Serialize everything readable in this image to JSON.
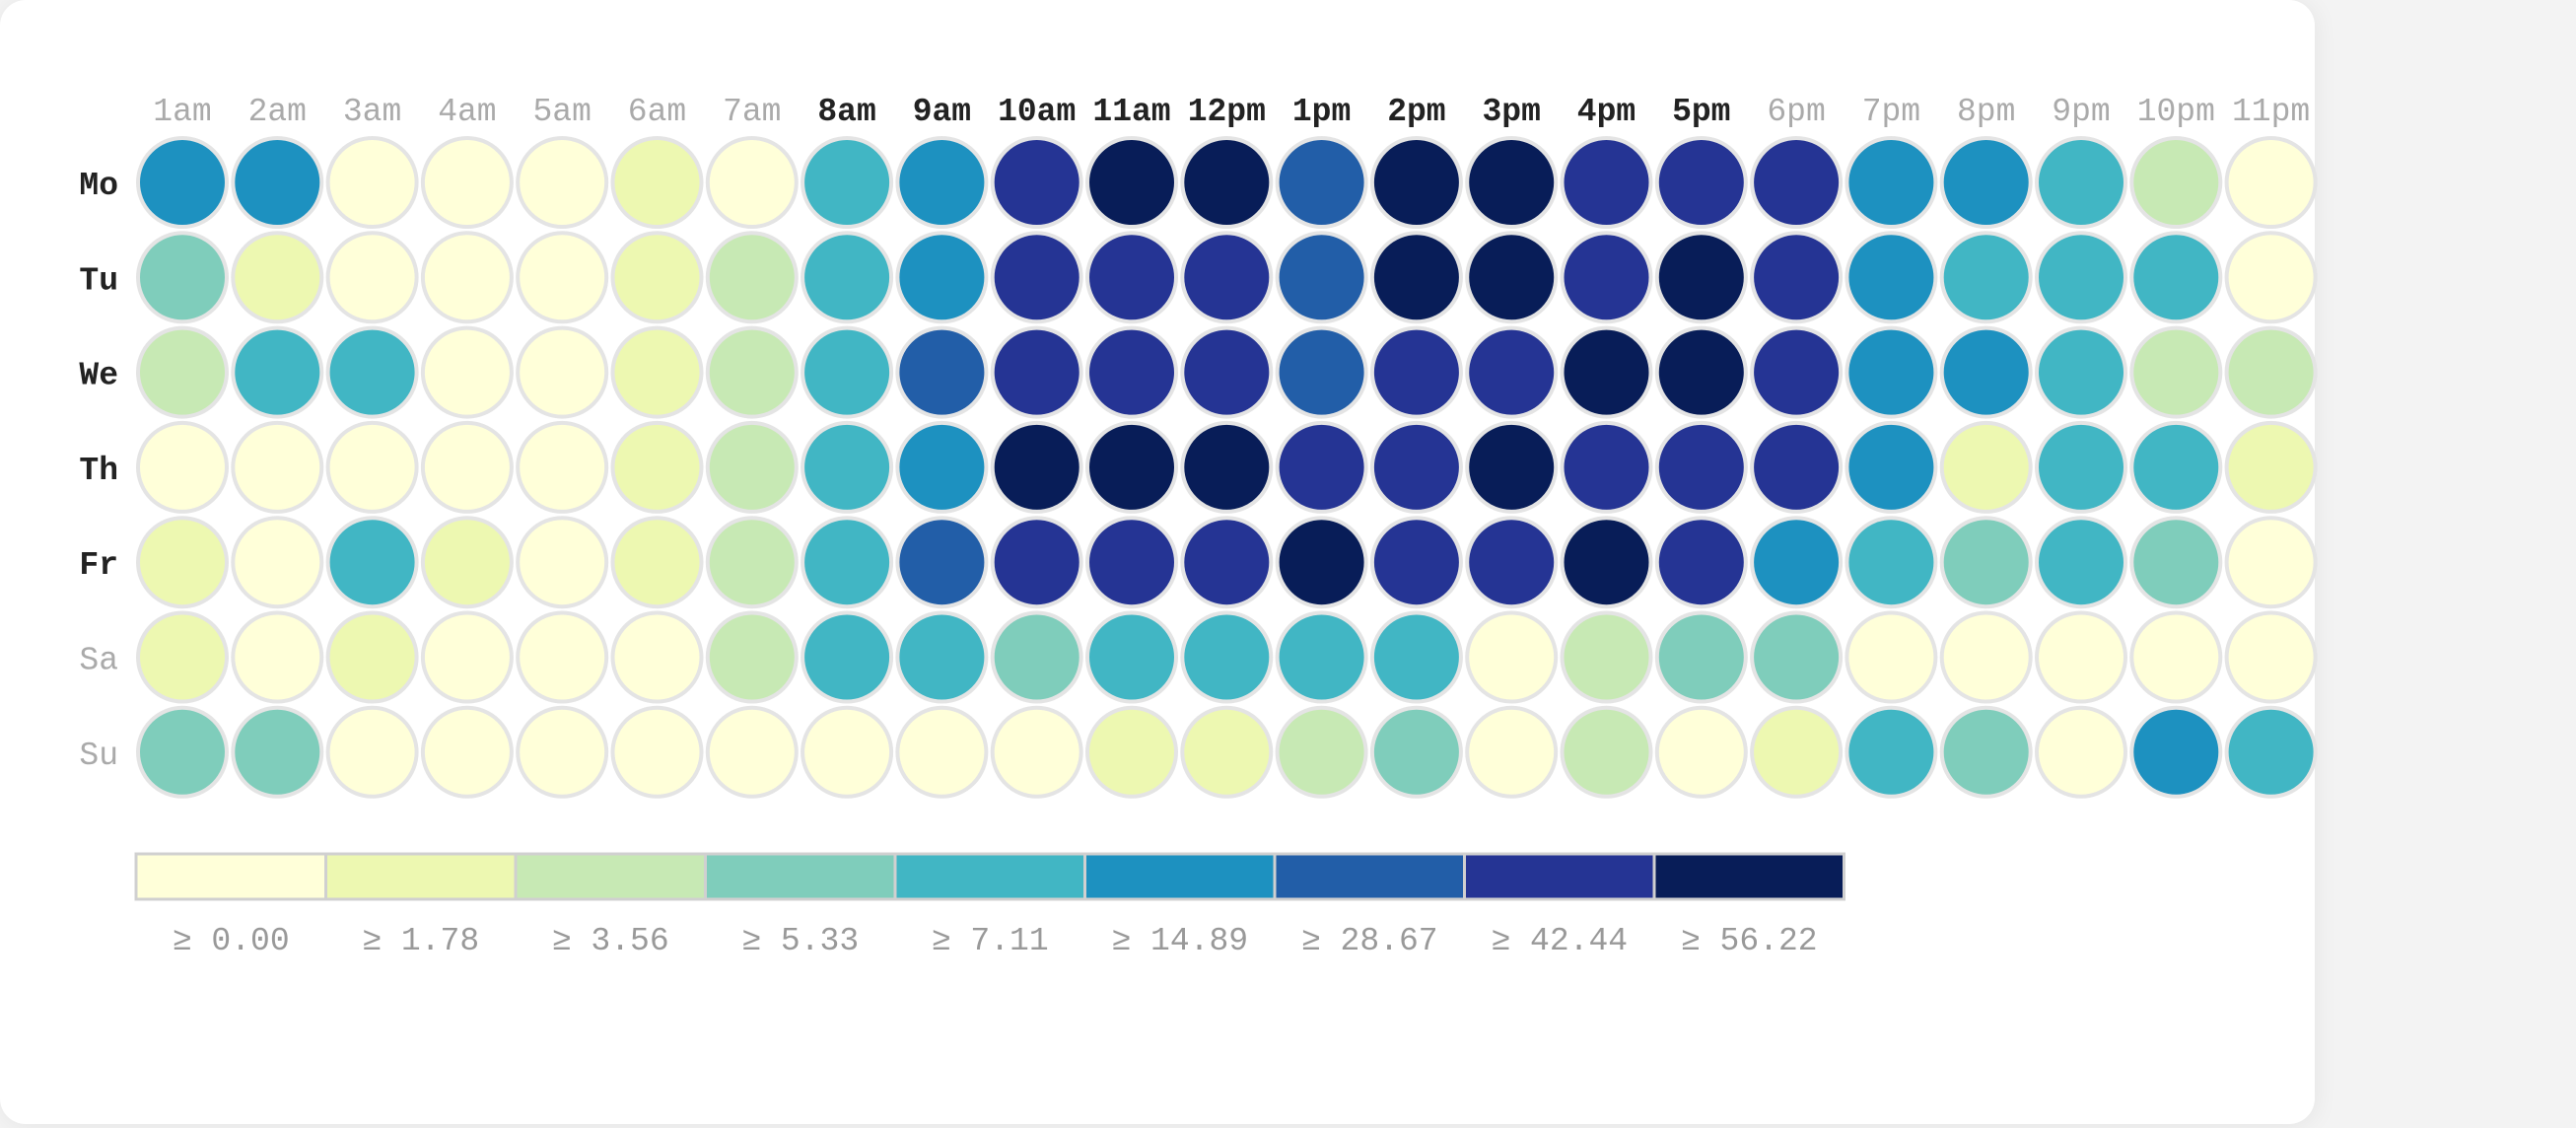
{
  "chart_data": {
    "type": "heatmap",
    "x_categories": [
      "1am",
      "2am",
      "3am",
      "4am",
      "5am",
      "6am",
      "7am",
      "8am",
      "9am",
      "10am",
      "11am",
      "12pm",
      "1pm",
      "2pm",
      "3pm",
      "4pm",
      "5pm",
      "6pm",
      "7pm",
      "8pm",
      "9pm",
      "10pm",
      "11pm"
    ],
    "y_categories": [
      "Mo",
      "Tu",
      "We",
      "Th",
      "Fr",
      "Sa",
      "Su"
    ],
    "highlighted_x": [
      "8am",
      "9am",
      "10am",
      "11am",
      "12pm",
      "1pm",
      "2pm",
      "3pm",
      "4pm",
      "5pm"
    ],
    "highlighted_y": [
      "Mo",
      "Tu",
      "We",
      "Th",
      "Fr"
    ],
    "thresholds": [
      0.0,
      1.78,
      3.56,
      5.33,
      7.11,
      14.89,
      28.67,
      42.44,
      56.22
    ],
    "legend_labels": [
      "≥ 0.00",
      "≥ 1.78",
      "≥ 3.56",
      "≥ 5.33",
      "≥ 7.11",
      "≥ 14.89",
      "≥ 28.67",
      "≥ 42.44",
      "≥ 56.22"
    ],
    "colors": [
      "#ffffd9",
      "#edf8b1",
      "#c7e9b4",
      "#7fcdbb",
      "#41b6c4",
      "#1d91c0",
      "#225ea8",
      "#253494",
      "#081d58"
    ],
    "bucket_matrix": [
      [
        5,
        5,
        0,
        0,
        0,
        1,
        0,
        4,
        5,
        7,
        8,
        8,
        6,
        8,
        8,
        7,
        7,
        7,
        5,
        5,
        4,
        2,
        0
      ],
      [
        3,
        1,
        0,
        0,
        0,
        1,
        2,
        4,
        5,
        7,
        7,
        7,
        6,
        8,
        8,
        7,
        8,
        7,
        5,
        4,
        4,
        4,
        0
      ],
      [
        2,
        4,
        4,
        0,
        0,
        1,
        2,
        4,
        6,
        7,
        7,
        7,
        6,
        7,
        7,
        8,
        8,
        7,
        5,
        5,
        4,
        2,
        2
      ],
      [
        0,
        0,
        0,
        0,
        0,
        1,
        2,
        4,
        5,
        8,
        8,
        8,
        7,
        7,
        8,
        7,
        7,
        7,
        5,
        1,
        4,
        4,
        1
      ],
      [
        1,
        0,
        4,
        1,
        0,
        1,
        2,
        4,
        6,
        7,
        7,
        7,
        8,
        7,
        7,
        8,
        7,
        5,
        4,
        3,
        4,
        3,
        0
      ],
      [
        1,
        0,
        1,
        0,
        0,
        0,
        2,
        4,
        4,
        3,
        4,
        4,
        4,
        4,
        0,
        2,
        3,
        3,
        0,
        0,
        0,
        0,
        0
      ],
      [
        3,
        3,
        0,
        0,
        0,
        0,
        0,
        0,
        0,
        0,
        1,
        1,
        2,
        3,
        0,
        2,
        0,
        1,
        4,
        3,
        0,
        5,
        4
      ]
    ],
    "values_note": "",
    "label_colors": {
      "highlighted": "#222222",
      "normal": "#aaaaaa"
    },
    "circle_stroke": "#e4e4e4"
  }
}
